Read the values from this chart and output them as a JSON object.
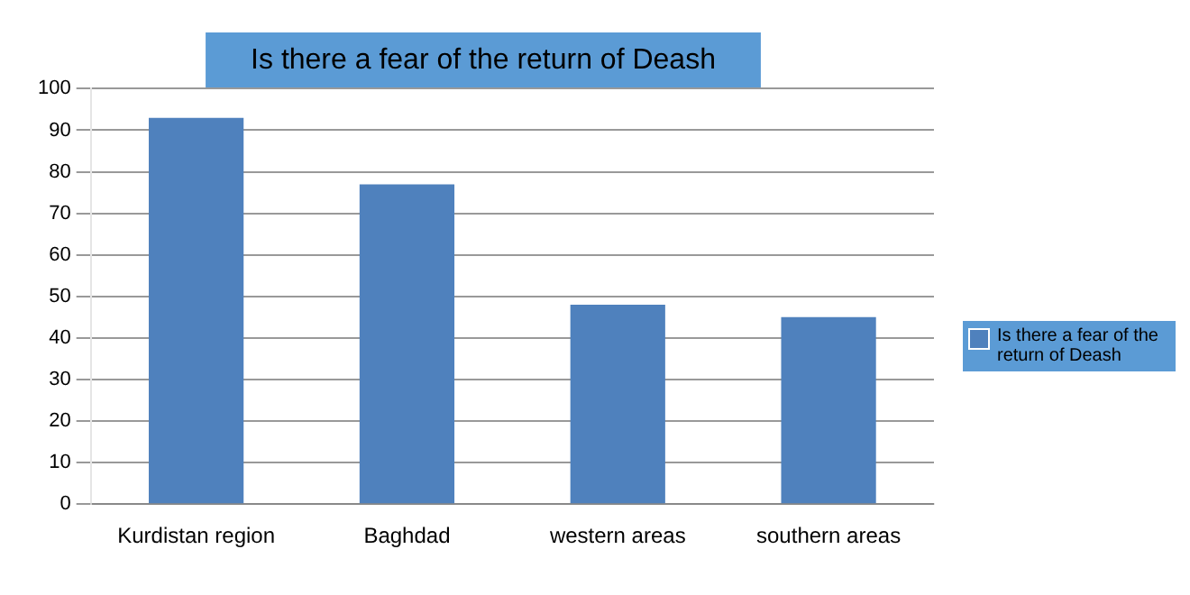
{
  "chart_data": {
    "type": "bar",
    "title": "Is there a fear of the return of Deash",
    "categories": [
      "Kurdistan region",
      "Baghdad",
      "western areas",
      "southern areas"
    ],
    "series": [
      {
        "name": "Is there a fear of the return of Deash",
        "color": "#4f81bd",
        "values": [
          93,
          77,
          48,
          45
        ]
      }
    ],
    "ylim": [
      0,
      100
    ],
    "yticks": [
      0,
      10,
      20,
      30,
      40,
      50,
      60,
      70,
      80,
      90,
      100
    ],
    "grid": "y",
    "legend": "right"
  }
}
